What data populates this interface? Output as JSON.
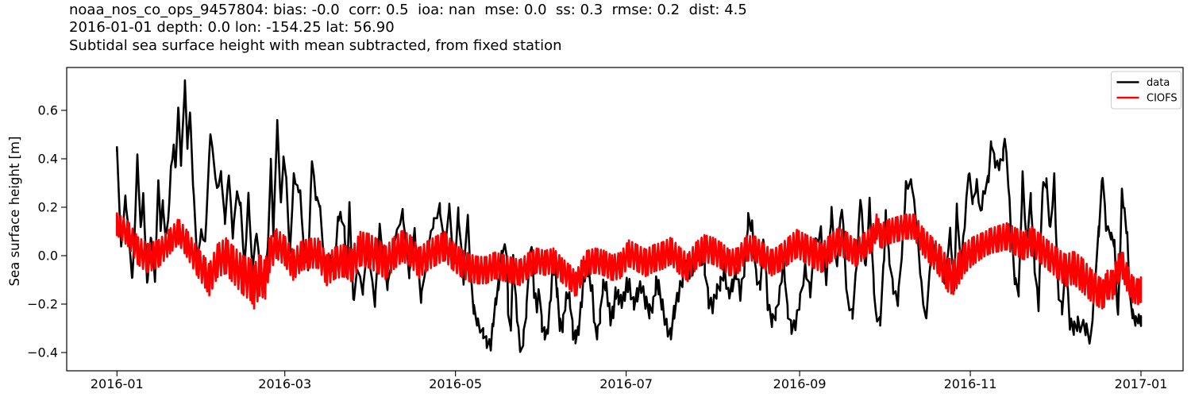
{
  "station": {
    "id": "noaa_nos_co_ops_9457804",
    "date": "2016-01-01",
    "depth": "0.0",
    "lon": "-154.25",
    "lat": "56.90"
  },
  "stats": {
    "bias": "-0.0",
    "corr": "0.5",
    "ioa": "nan",
    "mse": "0.0",
    "ss": "0.3",
    "rmse": "0.2",
    "dist": "4.5"
  },
  "chart_data": {
    "type": "line",
    "title_lines": [
      "noaa_nos_co_ops_9457804: bias: -0.0  corr: 0.5  ioa: nan  mse: 0.0  ss: 0.3  rmse: 0.2  dist: 4.5",
      "2016-01-01 depth: 0.0 lon: -154.25 lat: 56.90",
      "Subtidal sea surface height with mean subtracted, from fixed station"
    ],
    "xlabel": "",
    "ylabel": "Sea surface height [m]",
    "x_unit": "days since 2016-01-01",
    "grid": false,
    "xlim_days": [
      -17.96,
      381.04
    ],
    "ylim": [
      -0.4754,
      0.777
    ],
    "x_ticks": [
      {
        "day": 0,
        "label": "2016-01"
      },
      {
        "day": 60,
        "label": "2016-03"
      },
      {
        "day": 121,
        "label": "2016-05"
      },
      {
        "day": 182,
        "label": "2016-07"
      },
      {
        "day": 244,
        "label": "2016-09"
      },
      {
        "day": 305,
        "label": "2016-11"
      },
      {
        "day": 366,
        "label": "2017-01"
      }
    ],
    "y_ticks": [
      {
        "value": -0.4,
        "label": "−0.4"
      },
      {
        "value": -0.2,
        "label": "−0.2"
      },
      {
        "value": 0.0,
        "label": "0.0"
      },
      {
        "value": 0.2,
        "label": "0.2"
      },
      {
        "value": 0.4,
        "label": "0.4"
      },
      {
        "value": 0.6,
        "label": "0.6"
      }
    ],
    "legend": {
      "location": "upper right",
      "entries": [
        {
          "label": "data",
          "color": "#000000"
        },
        {
          "label": "CIOFS",
          "color": "#ff0000"
        }
      ]
    },
    "series": [
      {
        "name": "data",
        "color": "#000000",
        "line_width": 2.6,
        "x": [
          0,
          1.5,
          3,
          4.2,
          5.4,
          6.2,
          7.3,
          8.5,
          9.4,
          10.8,
          12.2,
          13.6,
          14.8,
          15.6,
          16.4,
          17.3,
          18.3,
          19.3,
          20.3,
          21,
          21.9,
          22.9,
          24.3,
          25.2,
          26.1,
          27.2,
          28.7,
          30.1,
          31.5,
          33.4,
          35.8,
          37.2,
          38.6,
          40,
          41.4,
          42.8,
          44.2,
          45.6,
          47,
          48.4,
          49.9,
          51.3,
          52.7,
          54.1,
          55,
          55.9,
          57.3,
          58.6,
          59.5,
          60.4,
          61.8,
          63.2,
          64.5,
          65.5,
          66.9,
          68.3,
          69.7,
          71.1,
          72.5,
          73.9,
          75.3,
          76.2,
          77.6,
          79,
          79.9,
          81.3,
          82.2,
          83.1,
          84.5,
          86,
          87.9,
          89.5,
          92.2,
          93.9,
          96.7,
          99,
          102.1,
          104.5,
          106.4,
          108.7,
          111,
          113,
          115.4,
          117.3,
          118.7,
          120.6,
          122,
          123.9,
          125.3,
          126.6,
          127.5,
          129,
          130.9,
          132.2,
          133.6,
          134.5,
          135.5,
          136.4,
          137.8,
          139.3,
          139.8,
          140.7,
          141.6,
          142.6,
          143.5,
          144.5,
          145.4,
          146.4,
          147.3,
          148.2,
          149.1,
          150.1,
          151,
          151.9,
          152.8,
          153.7,
          154.7,
          155.6,
          156.5,
          157.4,
          158.3,
          159.3,
          160.2,
          161.1,
          162,
          163,
          163.9,
          164.8,
          165.8,
          166.7,
          167.6,
          168.5,
          169.9,
          170.9,
          171.8,
          172.7,
          173.6,
          174.6,
          175.5,
          176.4,
          177.4,
          178.3,
          179.2,
          180.1,
          181.1,
          182.2,
          183.2,
          184.6,
          186,
          187.4,
          188.9,
          190.3,
          191.7,
          192.7,
          193.6,
          195,
          196.4,
          197.8,
          199.2,
          200.7,
          202.1,
          203.5,
          204.9,
          206.3,
          207.7,
          208.7,
          210.1,
          211.5,
          212.9,
          214.3,
          215.7,
          217.1,
          218.5,
          219.9,
          221.3,
          222.8,
          224.2,
          225.6,
          227,
          228.4,
          229.8,
          231.2,
          232.6,
          234.1,
          235.5,
          236.9,
          238.3,
          239.7,
          241.1,
          242.5,
          243.9,
          246,
          247.8,
          249.7,
          251.6,
          253.5,
          255.4,
          257.2,
          259.1,
          261,
          262.9,
          264.7,
          265.7,
          267.6,
          269,
          270.4,
          271.2,
          272.8,
          274.2,
          274.8,
          275.9,
          277.5,
          279.1,
          280.8,
          282,
          284.1,
          286,
          287.5,
          289.1,
          291.4,
          293,
          295.8,
          297.8,
          299.2,
          300.2,
          301.6,
          303,
          304.4,
          305.9,
          307.3,
          308.7,
          309.6,
          311.5,
          312.5,
          313.9,
          315.3,
          316.7,
          317.3,
          318.6,
          319.5,
          320.9,
          322.3,
          323.7,
          325.1,
          326.6,
          328,
          329.4,
          330.8,
          332.2,
          333.6,
          335,
          336.4,
          337.8,
          339.2,
          340.6,
          342,
          343.4,
          346.2,
          348.1,
          349.5,
          350.9,
          352.3,
          353.5,
          355.4,
          356.5,
          357.8,
          359.2,
          360.1,
          361.1,
          362,
          363,
          364,
          365,
          366
        ],
        "y": [
          0.44,
          0.03,
          0.24,
          0.1,
          -0.1,
          0.05,
          0.41,
          0.11,
          0.25,
          -0.12,
          0.08,
          -0.1,
          0.32,
          0.11,
          0.22,
          0.08,
          0.14,
          0.36,
          0.45,
          0.36,
          0.62,
          0.38,
          0.715,
          0.45,
          0.6,
          0.3,
          -0.02,
          0.1,
          0.05,
          0.51,
          0.27,
          0.34,
          0.14,
          0.34,
          0.08,
          0.26,
          0.21,
          -0.05,
          0.25,
          -0.06,
          0.1,
          -0.08,
          -0.13,
          0.07,
          0.39,
          0.09,
          0.55,
          0.21,
          0.4,
          0.34,
          0.0,
          0.33,
          0.28,
          0.26,
          0.01,
          -0.05,
          0.4,
          0.24,
          0.21,
          0.0,
          -0.06,
          -0.01,
          -0.08,
          0.15,
          0.17,
          0.11,
          -0.1,
          0.21,
          -0.19,
          -0.05,
          -0.15,
          0.05,
          -0.2,
          0.12,
          -0.13,
          0.05,
          0.18,
          -0.08,
          0.1,
          -0.18,
          0.02,
          0.13,
          0.2,
          0.0,
          0.21,
          -0.05,
          0.18,
          -0.1,
          0.17,
          -0.11,
          -0.22,
          -0.28,
          -0.32,
          -0.36,
          -0.37,
          -0.27,
          -0.18,
          -0.12,
          0.03,
          0.02,
          -0.22,
          -0.32,
          -0.02,
          -0.19,
          -0.32,
          -0.41,
          -0.33,
          -0.22,
          -0.03,
          0.06,
          -0.15,
          -0.21,
          -0.14,
          -0.29,
          -0.32,
          -0.33,
          -0.22,
          -0.08,
          -0.04,
          -0.16,
          -0.285,
          -0.29,
          -0.2,
          -0.15,
          -0.19,
          -0.32,
          -0.335,
          -0.32,
          -0.22,
          -0.115,
          -0.05,
          -0.06,
          -0.15,
          -0.31,
          -0.32,
          -0.25,
          -0.13,
          -0.115,
          -0.18,
          -0.26,
          -0.23,
          -0.15,
          -0.17,
          -0.19,
          -0.18,
          -0.12,
          -0.125,
          -0.2,
          -0.16,
          -0.125,
          -0.19,
          -0.23,
          -0.2,
          -0.115,
          -0.13,
          -0.21,
          -0.29,
          -0.33,
          -0.23,
          -0.16,
          -0.1,
          -0.05,
          -0.07,
          -0.04,
          0.01,
          0.0,
          -0.05,
          -0.19,
          -0.21,
          -0.15,
          -0.115,
          -0.06,
          -0.16,
          -0.125,
          -0.07,
          -0.16,
          -0.06,
          0.15,
          0.12,
          -0.08,
          -0.13,
          0.07,
          -0.2,
          -0.27,
          -0.24,
          -0.15,
          -0.02,
          -0.23,
          -0.3,
          -0.285,
          -0.2,
          -0.05,
          -0.15,
          0.05,
          0.1,
          -0.1,
          0.18,
          -0.05,
          0.21,
          -0.18,
          -0.24,
          0.0,
          0.25,
          -0.06,
          0.22,
          -0.1,
          -0.245,
          -0.27,
          0.0,
          0.17,
          0.0,
          -0.14,
          -0.19,
          0.05,
          0.29,
          0.3,
          0.1,
          -0.12,
          -0.27,
          0.05,
          -0.02,
          -0.1,
          0.1,
          -0.13,
          0.2,
          -0.05,
          0.13,
          0.35,
          0.22,
          0.3,
          0.17,
          0.25,
          0.32,
          0.47,
          0.38,
          0.37,
          0.41,
          0.5,
          0.3,
          0.12,
          -0.1,
          -0.15,
          0.33,
          0.05,
          0.24,
          -0.05,
          -0.21,
          0.28,
          0.3,
          0.1,
          0.32,
          -0.15,
          -0.22,
          -0.05,
          -0.28,
          -0.3,
          -0.28,
          -0.3,
          -0.35,
          -0.1,
          0.1,
          0.34,
          0.12,
          0.08,
          0.05,
          -0.26,
          0.26,
          0.18,
          0.08,
          -0.17,
          -0.24,
          -0.27,
          -0.26,
          -0.27
        ],
        "jitter": {
          "period": 1.1,
          "x": [
            0,
            60,
            100,
            125,
            170,
            200,
            250,
            300,
            335,
            345,
            355,
            366
          ],
          "amp": [
            0.008,
            0.01,
            0.012,
            0.02,
            0.028,
            0.03,
            0.022,
            0.015,
            0.02,
            0.03,
            0.015,
            0.02
          ]
        }
      },
      {
        "name": "CIOFS",
        "color": "#ff0000",
        "line_width": 2.7,
        "x": [
          0,
          4,
          7.5,
          11,
          15,
          19,
          22,
          25,
          29,
          31.5,
          33,
          36,
          39,
          41,
          45,
          48,
          49,
          51,
          53,
          54.5,
          57,
          60,
          63,
          66,
          69,
          72,
          75,
          78,
          81,
          84,
          87,
          90,
          93,
          96,
          99,
          102,
          105,
          108,
          111,
          114,
          117,
          120,
          123,
          126,
          129,
          132,
          135,
          138,
          141,
          144,
          147,
          150,
          153,
          156,
          159,
          162,
          164,
          166,
          168,
          171,
          174,
          177,
          180,
          183,
          186,
          189,
          192,
          195,
          198,
          201,
          204,
          207,
          210,
          213,
          216,
          219,
          222,
          225,
          228,
          231,
          234,
          237,
          240,
          243,
          246,
          249,
          252,
          255,
          258,
          261,
          264,
          267,
          270,
          271.5,
          273,
          276,
          279,
          282,
          285,
          288,
          291,
          294,
          297,
          299,
          301,
          303,
          306,
          309,
          312,
          315,
          318,
          321,
          324,
          327,
          330,
          333,
          336,
          339,
          342,
          345,
          348,
          351,
          352.5,
          354,
          356,
          358,
          359.5,
          361,
          363,
          365,
          366
        ],
        "y": [
          0.13,
          0.09,
          0.02,
          -0.01,
          0.01,
          0.06,
          0.1,
          0.05,
          -0.03,
          -0.07,
          -0.1,
          -0.02,
          0.0,
          -0.03,
          -0.08,
          -0.1,
          -0.13,
          -0.08,
          -0.1,
          0.0,
          0.05,
          0.02,
          -0.04,
          0.0,
          0.01,
          0.01,
          -0.06,
          -0.03,
          -0.02,
          -0.04,
          0.03,
          0.02,
          0.0,
          -0.03,
          0.01,
          0.04,
          0.02,
          -0.03,
          0.0,
          0.02,
          0.04,
          0.0,
          -0.03,
          -0.05,
          -0.06,
          -0.06,
          -0.04,
          -0.05,
          -0.06,
          -0.07,
          -0.04,
          -0.02,
          -0.03,
          -0.02,
          -0.06,
          -0.09,
          -0.12,
          -0.07,
          -0.03,
          -0.02,
          -0.03,
          -0.05,
          -0.04,
          0.01,
          -0.01,
          -0.03,
          -0.01,
          0.0,
          0.02,
          -0.02,
          -0.05,
          0.0,
          0.03,
          0.02,
          0.0,
          -0.03,
          -0.02,
          0.03,
          0.03,
          0.0,
          -0.03,
          -0.01,
          0.02,
          0.05,
          0.03,
          0.01,
          -0.01,
          0.03,
          0.06,
          0.04,
          0.01,
          0.04,
          0.07,
          0.12,
          0.08,
          0.1,
          0.11,
          0.12,
          0.12,
          0.06,
          0.02,
          -0.02,
          -0.08,
          -0.09,
          -0.05,
          -0.01,
          0.02,
          0.04,
          0.06,
          0.07,
          0.08,
          0.06,
          0.04,
          0.06,
          0.03,
          0.0,
          -0.03,
          -0.06,
          -0.05,
          -0.08,
          -0.12,
          -0.15,
          -0.16,
          -0.12,
          -0.12,
          -0.05,
          -0.04,
          -0.09,
          -0.14,
          -0.15,
          -0.14
        ],
        "jitter": {
          "period": 0.62,
          "x": [
            0,
            10,
            20,
            30,
            45,
            50,
            57,
            70,
            80,
            90,
            110,
            130,
            150,
            170,
            190,
            210,
            230,
            250,
            270,
            285,
            298,
            310,
            320,
            335,
            345,
            352,
            360,
            366
          ],
          "amp": [
            0.045,
            0.06,
            0.05,
            0.06,
            0.08,
            0.09,
            0.06,
            0.06,
            0.065,
            0.07,
            0.06,
            0.055,
            0.05,
            0.05,
            0.055,
            0.055,
            0.05,
            0.06,
            0.05,
            0.05,
            0.07,
            0.05,
            0.055,
            0.06,
            0.07,
            0.06,
            0.055,
            0.05
          ]
        }
      }
    ]
  }
}
